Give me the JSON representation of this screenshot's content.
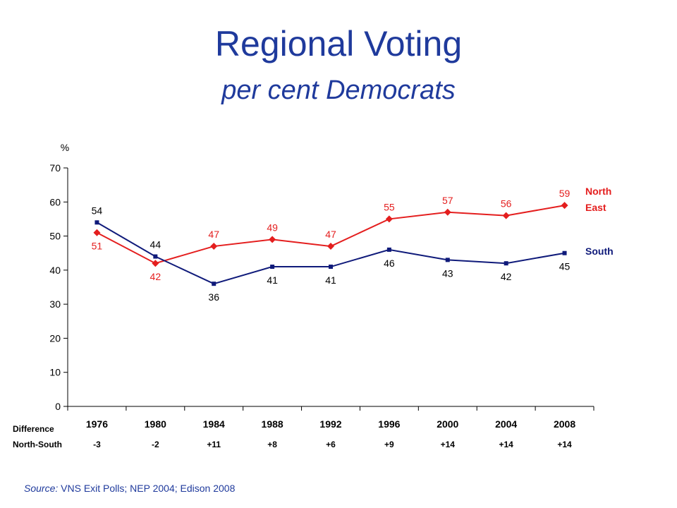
{
  "title": "Regional Voting",
  "subtitle": "per cent Democrats",
  "source": {
    "label": "Source:",
    "text": " VNS Exit Polls; NEP 2004; Edison 2008"
  },
  "difference": {
    "label_line1": "Difference",
    "label_line2": "North-South",
    "values": [
      "-3",
      "-2",
      "+11",
      "+8",
      "+6",
      "+9",
      "+14",
      "+14",
      "+14"
    ]
  },
  "colors": {
    "north_east": "#e41e1e",
    "south": "#0f1a7a",
    "title": "#1f3a9c"
  },
  "chart_data": {
    "type": "line",
    "ylabel": "%",
    "ylim": [
      0,
      70
    ],
    "yticks": [
      0,
      10,
      20,
      30,
      40,
      50,
      60,
      70
    ],
    "categories": [
      "1976",
      "1980",
      "1984",
      "1988",
      "1992",
      "1996",
      "2000",
      "2004",
      "2008"
    ],
    "grid": false,
    "legend": "right",
    "series": [
      {
        "key": "north_east",
        "name_line1": "North",
        "name_line2": "East",
        "marker": "diamond",
        "values": [
          51,
          42,
          47,
          49,
          47,
          55,
          57,
          56,
          59
        ]
      },
      {
        "key": "south",
        "name_line1": "South",
        "name_line2": "",
        "marker": "square",
        "values": [
          54,
          44,
          36,
          41,
          41,
          46,
          43,
          42,
          45
        ]
      }
    ]
  }
}
